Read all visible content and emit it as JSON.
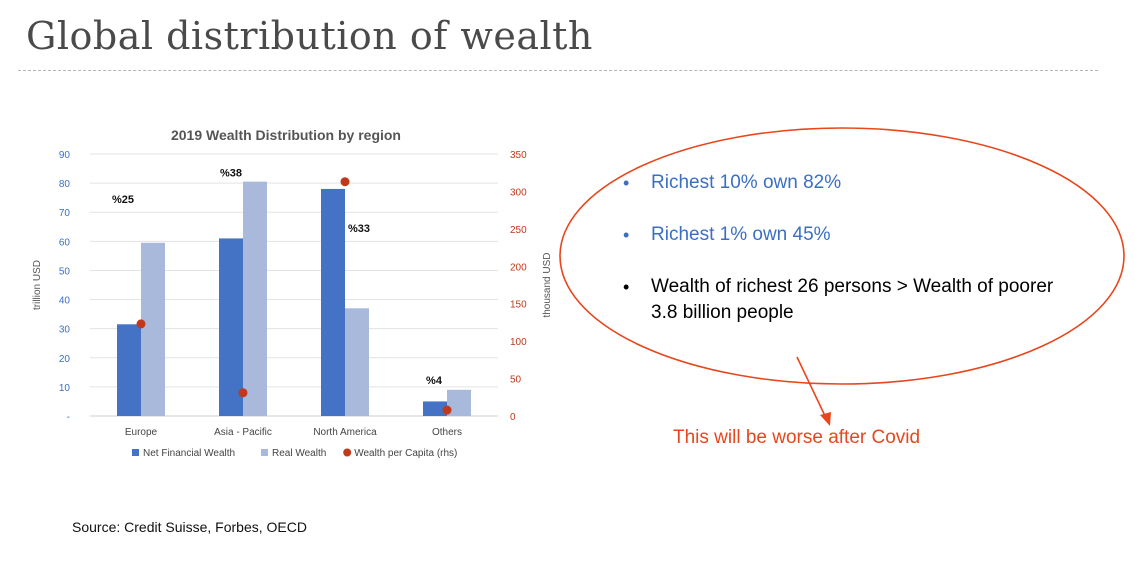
{
  "slide": {
    "title": "Global distribution of wealth",
    "source": "Source: Credit Suisse, Forbes, OECD",
    "bullets": [
      {
        "text": "Richest 10% own 82%",
        "color": "#3a6fc4"
      },
      {
        "text": "Richest 1% own 45%",
        "color": "#3a6fc4"
      },
      {
        "text": "Wealth of richest 26 persons > Wealth of poorer 3.8 billion people",
        "color": "#000000"
      }
    ],
    "callout": "This will be worse after Covid",
    "accent_color": "#e8461c"
  },
  "chart_data": {
    "type": "bar",
    "title": "2019 Wealth Distribution by region",
    "categories": [
      "Europe",
      "Asia - Pacific",
      "North America",
      "Others"
    ],
    "series": [
      {
        "name": "Net Financial Wealth",
        "values": [
          31.5,
          61,
          78,
          5
        ],
        "color": "#4472c4",
        "axis": "left",
        "kind": "bar"
      },
      {
        "name": "Real Wealth",
        "values": [
          59.5,
          80.5,
          37,
          9
        ],
        "color": "#a9b9dc",
        "axis": "left",
        "kind": "bar"
      },
      {
        "name": "Wealth per Capita (rhs)",
        "values": [
          123,
          31,
          313,
          8
        ],
        "color": "#c0391b",
        "axis": "right",
        "kind": "scatter"
      }
    ],
    "annotations": [
      "%25",
      "%38",
      "%33",
      "%4"
    ],
    "ylabel": "trillion USD",
    "y2label": "thousand USD",
    "ylim": [
      0,
      90
    ],
    "y2lim": [
      0,
      350
    ],
    "yticks": [
      "-",
      "10",
      "20",
      "30",
      "40",
      "50",
      "60",
      "70",
      "80",
      "90"
    ],
    "y2ticks": [
      "0",
      "50",
      "100",
      "150",
      "200",
      "250",
      "300",
      "350"
    ],
    "left_axis_color": "#3a6fc4",
    "right_axis_color": "#c0391b",
    "legend_position": "bottom",
    "grid": true
  }
}
